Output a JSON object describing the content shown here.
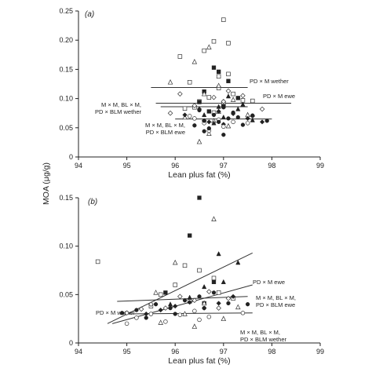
{
  "figure": {
    "shared_ylabel": "MOA (μg/g)"
  },
  "chart_data": [
    {
      "type": "scatter",
      "panel": "(a)",
      "xlabel": "Lean plus fat (%)",
      "ylabel": "MOA (μg/g)",
      "xlim": [
        94,
        99
      ],
      "ylim": [
        0,
        0.25
      ],
      "x_ticks": [
        "94",
        "95",
        "96",
        "97",
        "98",
        "99"
      ],
      "y_ticks": [
        "0",
        "0.05",
        "0.10",
        "0.15",
        "0.20",
        "0.25"
      ],
      "grid": false,
      "regression_lines": [
        {
          "label": "PD × M wether",
          "x": [
            95.5,
            97.5
          ],
          "y": [
            0.119,
            0.119
          ]
        },
        {
          "label": "PD × M ewe",
          "x": [
            95.6,
            98.4
          ],
          "y": [
            0.092,
            0.092
          ]
        },
        {
          "label": "M × M, BL × M,\nPD × BLM wether",
          "x": [
            95.7,
            97.5
          ],
          "y": [
            0.086,
            0.086
          ]
        },
        {
          "label": "M × M, BL × M,\nPD × BLM ewe",
          "x": [
            96.0,
            98.0
          ],
          "y": [
            0.065,
            0.065
          ]
        }
      ],
      "series": [
        {
          "name": "open squares",
          "marker": "open-square",
          "x": [
            96.1,
            96.6,
            96.8,
            97.0,
            97.1,
            96.3,
            96.9,
            97.2,
            96.5,
            96.2,
            96.7,
            97.4,
            97.0,
            96.4,
            97.6,
            96.8,
            97.1,
            96.9
          ],
          "y": [
            0.172,
            0.182,
            0.198,
            0.235,
            0.195,
            0.128,
            0.138,
            0.108,
            0.095,
            0.083,
            0.102,
            0.097,
            0.091,
            0.085,
            0.096,
            0.076,
            0.142,
            0.118
          ]
        },
        {
          "name": "filled squares",
          "marker": "filled-square",
          "x": [
            96.8,
            96.9,
            97.1,
            96.6,
            97.3,
            96.5,
            97.0,
            96.7
          ],
          "y": [
            0.153,
            0.146,
            0.13,
            0.112,
            0.101,
            0.094,
            0.087,
            0.078
          ]
        },
        {
          "name": "open triangles",
          "marker": "open-triangle",
          "x": [
            96.4,
            96.7,
            95.9,
            96.6,
            97.2,
            96.9,
            96.2,
            96.8,
            97.5,
            97.1,
            96.7,
            96.5,
            96.9
          ],
          "y": [
            0.163,
            0.188,
            0.128,
            0.108,
            0.098,
            0.078,
            0.068,
            0.062,
            0.072,
            0.053,
            0.04,
            0.026,
            0.122
          ]
        },
        {
          "name": "filled triangles",
          "marker": "filled-triangle",
          "x": [
            96.6,
            97.0,
            97.3,
            96.8,
            97.1,
            97.6,
            97.4,
            96.9
          ],
          "y": [
            0.072,
            0.068,
            0.082,
            0.058,
            0.104,
            0.063,
            0.09,
            0.086
          ]
        },
        {
          "name": "open diamonds",
          "marker": "open-diamond",
          "x": [
            96.1,
            96.4,
            96.8,
            97.1,
            97.4,
            97.0,
            95.9,
            96.6,
            97.8,
            97.6
          ],
          "y": [
            0.108,
            0.088,
            0.102,
            0.113,
            0.105,
            0.095,
            0.075,
            0.062,
            0.082,
            0.07
          ]
        },
        {
          "name": "filled diamonds",
          "marker": "filled-diamond",
          "x": [
            96.2,
            96.5,
            96.9,
            97.2,
            97.5,
            96.7,
            97.0,
            97.8
          ],
          "y": [
            0.072,
            0.082,
            0.078,
            0.074,
            0.066,
            0.06,
            0.056,
            0.06
          ]
        },
        {
          "name": "open circles",
          "marker": "open-circle",
          "x": [
            96.3,
            96.6,
            96.9,
            97.2,
            96.4,
            97.0,
            97.5,
            96.7
          ],
          "y": [
            0.07,
            0.058,
            0.064,
            0.06,
            0.066,
            0.052,
            0.058,
            0.045
          ]
        },
        {
          "name": "filled circles",
          "marker": "filled-circle",
          "x": [
            96.5,
            96.8,
            97.0,
            97.3,
            96.6,
            96.9,
            97.1,
            97.6,
            97.9,
            96.4,
            96.7,
            97.2,
            97.4,
            96.6,
            97.0
          ],
          "y": [
            0.08,
            0.072,
            0.085,
            0.068,
            0.062,
            0.06,
            0.066,
            0.071,
            0.062,
            0.054,
            0.049,
            0.076,
            0.055,
            0.044,
            0.038
          ]
        }
      ]
    },
    {
      "type": "scatter",
      "panel": "(b)",
      "xlabel": "Lean plus fat (%)",
      "ylabel": "MOA (μg/g)",
      "xlim": [
        94,
        99
      ],
      "ylim": [
        0,
        0.15
      ],
      "x_ticks": [
        "94",
        "95",
        "96",
        "97",
        "98",
        "99"
      ],
      "y_ticks": [
        "0",
        "0.05",
        "0.10",
        "0.15"
      ],
      "grid": false,
      "regression_lines": [
        {
          "label": "PD × M ewe",
          "x": [
            94.6,
            97.6
          ],
          "y": [
            0.02,
            0.093
          ]
        },
        {
          "label": "M × M, BL × M,\nPD × BLM ewe",
          "x": [
            94.7,
            97.6
          ],
          "y": [
            0.02,
            0.06
          ]
        },
        {
          "label": "PD × M wether",
          "x": [
            94.8,
            97.5
          ],
          "y": [
            0.043,
            0.048
          ]
        },
        {
          "label": "M × M, BL × M,\nPD × BLM wether",
          "x": [
            94.9,
            97.6
          ],
          "y": [
            0.03,
            0.031
          ]
        }
      ],
      "series": [
        {
          "name": "open squares",
          "marker": "open-square",
          "x": [
            94.4,
            96.2,
            96.5,
            96.8,
            96.0,
            95.7,
            96.9,
            97.2,
            96.3,
            95.5
          ],
          "y": [
            0.084,
            0.08,
            0.075,
            0.067,
            0.06,
            0.05,
            0.052,
            0.046,
            0.043,
            0.038
          ]
        },
        {
          "name": "filled squares",
          "marker": "filled-square",
          "x": [
            96.5,
            96.3,
            96.8,
            95.8,
            96.6
          ],
          "y": [
            0.15,
            0.111,
            0.063,
            0.052,
            0.041
          ]
        },
        {
          "name": "open triangles",
          "marker": "open-triangle",
          "x": [
            96.8,
            96.0,
            95.6,
            96.6,
            97.3,
            96.2,
            95.7,
            97.0,
            96.4
          ],
          "y": [
            0.128,
            0.083,
            0.052,
            0.041,
            0.037,
            0.03,
            0.021,
            0.025,
            0.017
          ]
        },
        {
          "name": "filled triangles",
          "marker": "filled-triangle",
          "x": [
            96.9,
            97.3,
            97.0,
            96.6,
            96.3,
            95.9
          ],
          "y": [
            0.092,
            0.083,
            0.063,
            0.058,
            0.047,
            0.04
          ]
        },
        {
          "name": "open diamonds",
          "marker": "open-diamond",
          "x": [
            95.0,
            95.5,
            95.8,
            96.1,
            96.4,
            96.7,
            97.1,
            95.3,
            96.9
          ],
          "y": [
            0.031,
            0.04,
            0.036,
            0.048,
            0.044,
            0.053,
            0.046,
            0.035,
            0.036
          ]
        },
        {
          "name": "filled diamonds",
          "marker": "filled-diamond",
          "x": [
            95.7,
            96.0,
            96.3,
            96.6,
            96.9,
            97.2,
            95.4
          ],
          "y": [
            0.034,
            0.038,
            0.042,
            0.036,
            0.041,
            0.048,
            0.03
          ]
        },
        {
          "name": "open circles",
          "marker": "open-circle",
          "x": [
            95.2,
            95.5,
            95.8,
            96.1,
            96.4,
            96.7,
            95.0,
            96.5,
            97.4
          ],
          "y": [
            0.026,
            0.03,
            0.022,
            0.029,
            0.033,
            0.027,
            0.02,
            0.024,
            0.031
          ]
        },
        {
          "name": "filled circles",
          "marker": "filled-circle",
          "x": [
            94.9,
            95.2,
            95.6,
            95.9,
            96.2,
            96.5,
            96.8,
            97.1,
            96.0,
            95.4,
            96.6,
            97.5
          ],
          "y": [
            0.031,
            0.034,
            0.04,
            0.036,
            0.044,
            0.048,
            0.052,
            0.041,
            0.03,
            0.026,
            0.036,
            0.04
          ]
        }
      ]
    }
  ]
}
